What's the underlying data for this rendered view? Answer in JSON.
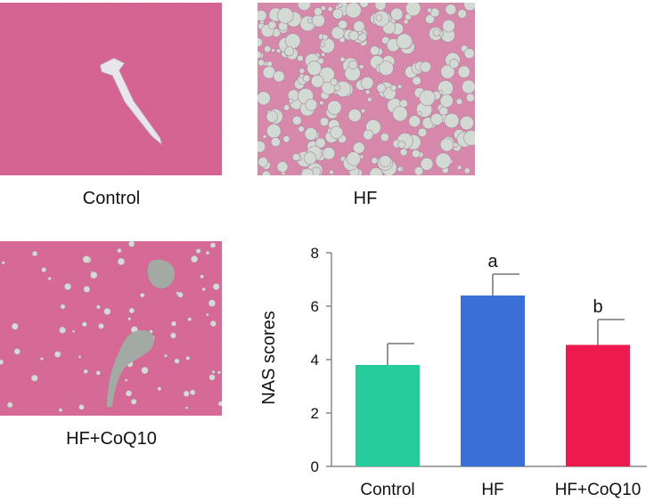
{
  "panels": {
    "control": {
      "caption": "Control"
    },
    "hf": {
      "caption": "HF"
    },
    "hf_coq10": {
      "caption": "HF+CoQ10"
    }
  },
  "chart_data": {
    "type": "bar",
    "title": "",
    "xlabel": "",
    "ylabel": "NAS scores",
    "ylim": [
      0,
      8
    ],
    "yticks": [
      0,
      2,
      4,
      6,
      8
    ],
    "categories": [
      "Control",
      "HF",
      "HF+CoQ10"
    ],
    "values": [
      3.8,
      6.4,
      4.55
    ],
    "errors": [
      0.8,
      0.8,
      0.95
    ],
    "annotations": [
      "",
      "a",
      "b"
    ],
    "colors": [
      "#26cc9c",
      "#3a6fd8",
      "#ee1a4d"
    ],
    "grid": false,
    "legend": "none"
  },
  "colors": {
    "tissue_base": "#d2547f",
    "tissue_light": "#e58aac",
    "tissue_dark": "#8c2d6e",
    "vessel": "#c4c8c4",
    "fat_droplet": "#cfd6d0"
  }
}
